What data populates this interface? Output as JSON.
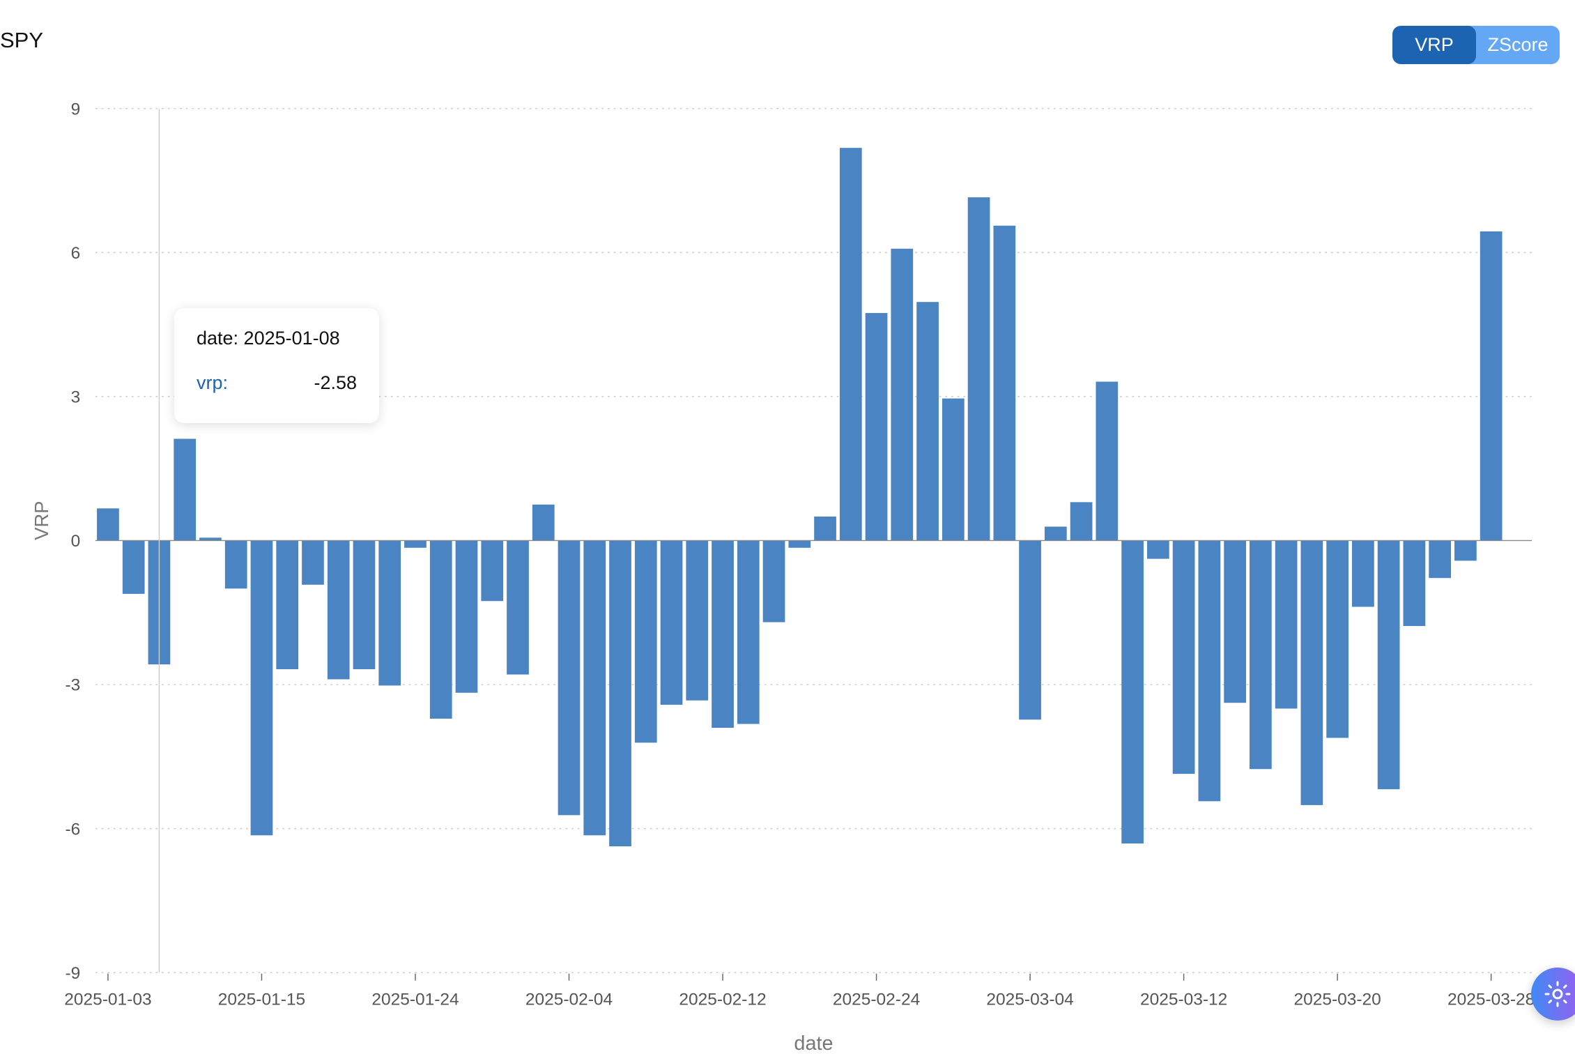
{
  "header": {
    "title": "SPY"
  },
  "toggle": {
    "options": [
      "VRP",
      "ZScore"
    ],
    "selected": "VRP"
  },
  "tooltip": {
    "date_text": "date: 2025-01-08",
    "series_label": "vrp:",
    "value_text": "-2.58"
  },
  "theme_button": {
    "icon": "sun-icon"
  },
  "colors": {
    "bar": "#4a84c2",
    "active_toggle": "#1c64b2",
    "inactive_toggle": "#64a7f5"
  },
  "chart_data": {
    "type": "bar",
    "title": "SPY",
    "xlabel": "date",
    "ylabel": "VRP",
    "ylim": [
      -9,
      9
    ],
    "yticks": [
      9,
      6,
      3,
      0,
      -3,
      -6,
      -9
    ],
    "grid": true,
    "x_tick_labels": [
      {
        "index": 0,
        "label": "2025-01-03"
      },
      {
        "index": 6,
        "label": "2025-01-15"
      },
      {
        "index": 12,
        "label": "2025-01-24"
      },
      {
        "index": 18,
        "label": "2025-02-04"
      },
      {
        "index": 24,
        "label": "2025-02-12"
      },
      {
        "index": 30,
        "label": "2025-02-24"
      },
      {
        "index": 36,
        "label": "2025-03-04"
      },
      {
        "index": 42,
        "label": "2025-03-12"
      },
      {
        "index": 48,
        "label": "2025-03-20"
      },
      {
        "index": 54,
        "label": "2025-03-28"
      }
    ],
    "highlighted_index": 2,
    "series": [
      {
        "name": "vrp",
        "values": [
          0.67,
          -1.11,
          -2.58,
          2.12,
          0.06,
          -1.0,
          -6.14,
          -2.68,
          -0.92,
          -2.89,
          -2.68,
          -3.02,
          -0.15,
          -3.71,
          -3.17,
          -1.26,
          -2.79,
          0.75,
          -5.72,
          -6.14,
          -6.37,
          -4.21,
          -3.42,
          -3.33,
          -3.9,
          -3.82,
          -1.7,
          -0.15,
          0.5,
          8.18,
          4.74,
          6.08,
          4.97,
          2.96,
          7.15,
          6.56,
          -3.73,
          0.29,
          0.8,
          3.31,
          -6.31,
          -0.38,
          -4.86,
          -5.43,
          -3.38,
          -4.76,
          -3.5,
          -5.51,
          -4.11,
          -1.38,
          -5.18,
          -1.78,
          -0.78,
          -0.42,
          6.44
        ]
      }
    ]
  }
}
